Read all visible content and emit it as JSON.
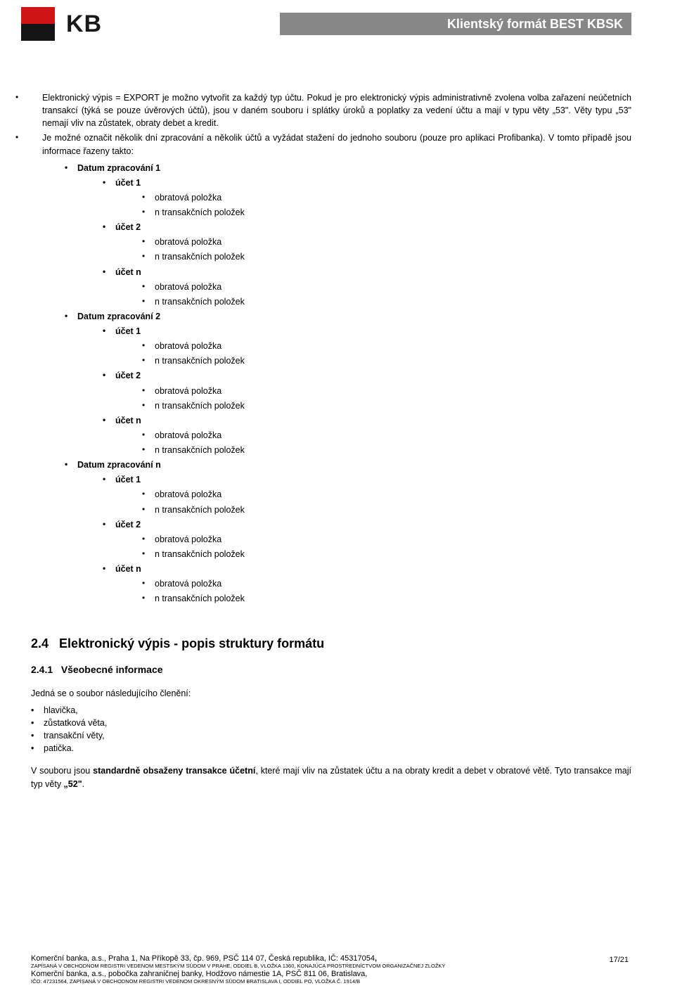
{
  "header": {
    "title": "Klientský formát BEST KBSK",
    "header_color": "#878787",
    "header_text_color": "#ffffff"
  },
  "logo": {
    "red": "#cf1415",
    "black": "#141414",
    "kb": "KB"
  },
  "intro_bullets": [
    "Elektronický výpis = EXPORT je možno vytvořit za každý typ účtu. Pokud je pro elektronický výpis administrativně zvolena volba zařazení neúčetních transakcí (týká se pouze úvěrových účtů), jsou v daném souboru i splátky úroků a poplatky za vedení účtu a mají v typu věty „53\". Věty typu „53\" nemají vliv na zůstatek, obraty debet a kredit.",
    "Je možné označit několik dní zpracování a několik účtů a vyžádat stažení do jednoho souboru (pouze pro aplikaci Profibanka). V tomto případě jsou informace řazeny takto:"
  ],
  "tree": {
    "date_label": "Datum zpracování",
    "account_label": "účet",
    "obratova": "obratová položka",
    "transakcni": "n transakčních položek",
    "dates": [
      "1",
      "2",
      "n"
    ],
    "accounts": [
      "1",
      "2",
      "n"
    ]
  },
  "section": {
    "num": "2.4",
    "title": "Elektronický výpis - popis struktury formátu"
  },
  "subsection": {
    "num": "2.4.1",
    "title": "Všeobecné informace"
  },
  "subsection_intro": "Jedná se o soubor následujícího členění:",
  "subsection_items": [
    "hlavička,",
    "zůstatková věta,",
    "transakční věty,",
    "patička."
  ],
  "para_final_pre": "V souboru jsou ",
  "para_final_bold": "standardně obsaženy transakce účetní",
  "para_final_post": ", které mají vliv na zůstatek účtu a na obraty kredit a debet v obratové větě. Tyto transakce mají typ věty ",
  "para_final_bold2": "„52\"",
  "para_final_end": ".",
  "footer": {
    "line1a": "Komerční banka, a.s., Praha 1, Na Příkopě 33, čp. 969, PSČ 114 07, Česká republika, IČ: 45317054",
    "line1b": ",",
    "tiny1": "ZAPÍSANÁ V OBCHODNOM REGISTRI VEDENOM MESTSKÝM SÚDOM V PRAHE, ODDIEL B, VLOŽKA 1360,  KONAJÚCA PROSTREDNÍCTVOM ORGANIZAČNEJ ZLOŽKY",
    "line2": "Komerční banka, a.s., pobočka zahraničnej banky, Hodžovo námestie 1A, PSČ 811 06, Bratislava,",
    "tiny2": "IČO: 47231564, ZAPÍSANÁ V OBCHODNOM REGISTRI VEDENOM OKRESNÝM SÚDOM BRATISLAVA I, ODDIEL PO, VLOŽKA Č. 1914/B",
    "page": "17/21"
  }
}
